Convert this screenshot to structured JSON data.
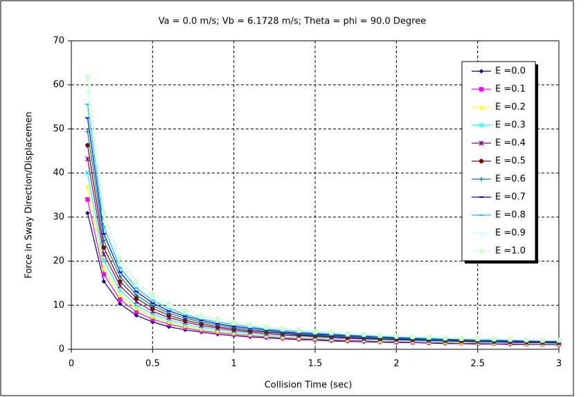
{
  "chart_data": {
    "type": "line",
    "title": "Va = 0.0 m/s; Vb = 6.1728 m/s; Theta = phi = 90.0 Degree",
    "x_label": "Collision Time (sec)",
    "y_label": "Force in Sway Direction/Displacemen",
    "x": [
      0.1,
      0.2,
      0.3,
      0.4,
      0.5,
      0.6,
      0.7,
      0.8,
      0.9,
      1.0,
      1.1,
      1.2,
      1.3,
      1.4,
      1.5,
      1.6,
      1.7,
      1.8,
      1.9,
      2.0,
      2.1,
      2.2,
      2.3,
      2.4,
      2.5,
      2.6,
      2.7,
      2.8,
      2.9,
      3.0
    ],
    "xlim": [
      0,
      3
    ],
    "xticks": [
      0,
      0.5,
      1,
      1.5,
      2,
      2.5,
      3
    ],
    "ylim": [
      0,
      70
    ],
    "yticks": [
      0,
      10,
      20,
      30,
      40,
      50,
      60,
      70
    ],
    "grid": true,
    "legend": "right",
    "series": [
      {
        "name": "E =0.0",
        "color": "#000080",
        "marker": "diamond",
        "values": [
          30.9,
          15.4,
          10.3,
          7.7,
          6.2,
          5.1,
          4.4,
          3.9,
          3.4,
          3.1,
          2.8,
          2.6,
          2.4,
          2.2,
          2.1,
          1.9,
          1.8,
          1.7,
          1.6,
          1.5,
          1.5,
          1.4,
          1.3,
          1.3,
          1.2,
          1.2,
          1.1,
          1.1,
          1.1,
          1.0
        ]
      },
      {
        "name": "E =0.1",
        "color": "#ff00ff",
        "marker": "square",
        "values": [
          34.0,
          17.0,
          11.3,
          8.5,
          6.8,
          5.7,
          4.9,
          4.2,
          3.8,
          3.4,
          3.1,
          2.8,
          2.6,
          2.4,
          2.3,
          2.1,
          2.0,
          1.9,
          1.8,
          1.7,
          1.6,
          1.5,
          1.5,
          1.4,
          1.4,
          1.3,
          1.3,
          1.2,
          1.2,
          1.1
        ]
      },
      {
        "name": "E =0.2",
        "color": "#ffff00",
        "marker": "triangle",
        "values": [
          37.0,
          18.5,
          12.3,
          9.3,
          7.4,
          6.2,
          5.3,
          4.6,
          4.1,
          3.7,
          3.4,
          3.1,
          2.8,
          2.6,
          2.5,
          2.3,
          2.2,
          2.1,
          1.9,
          1.9,
          1.8,
          1.7,
          1.6,
          1.5,
          1.5,
          1.4,
          1.4,
          1.3,
          1.3,
          1.2
        ]
      },
      {
        "name": "E =0.3",
        "color": "#00ffff",
        "marker": "x",
        "values": [
          40.1,
          20.1,
          13.4,
          10.0,
          8.0,
          6.7,
          5.7,
          5.0,
          4.5,
          4.0,
          3.6,
          3.3,
          3.1,
          2.9,
          2.7,
          2.5,
          2.4,
          2.2,
          2.1,
          2.0,
          1.9,
          1.8,
          1.7,
          1.7,
          1.6,
          1.5,
          1.5,
          1.4,
          1.4,
          1.3
        ]
      },
      {
        "name": "E =0.4",
        "color": "#800080",
        "marker": "star",
        "values": [
          43.2,
          21.6,
          14.4,
          10.8,
          8.6,
          7.2,
          6.2,
          5.4,
          4.8,
          4.3,
          3.9,
          3.6,
          3.3,
          3.1,
          2.9,
          2.7,
          2.5,
          2.4,
          2.3,
          2.2,
          2.1,
          2.0,
          1.9,
          1.8,
          1.7,
          1.7,
          1.6,
          1.5,
          1.5,
          1.4
        ]
      },
      {
        "name": "E =0.5",
        "color": "#800000",
        "marker": "circle",
        "values": [
          46.3,
          23.1,
          15.4,
          11.6,
          9.3,
          7.7,
          6.6,
          5.8,
          5.1,
          4.6,
          4.2,
          3.9,
          3.6,
          3.3,
          3.1,
          2.9,
          2.7,
          2.6,
          2.4,
          2.3,
          2.2,
          2.1,
          2.0,
          1.9,
          1.9,
          1.8,
          1.7,
          1.7,
          1.6,
          1.5
        ]
      },
      {
        "name": "E =0.6",
        "color": "#008080",
        "marker": "plus",
        "values": [
          49.4,
          24.7,
          16.5,
          12.3,
          9.9,
          8.2,
          7.1,
          6.2,
          5.5,
          4.9,
          4.5,
          4.1,
          3.8,
          3.5,
          3.3,
          3.1,
          2.9,
          2.7,
          2.6,
          2.5,
          2.4,
          2.2,
          2.1,
          2.1,
          2.0,
          1.9,
          1.8,
          1.8,
          1.7,
          1.6
        ]
      },
      {
        "name": "E =0.7",
        "color": "#0000ff",
        "marker": "dash",
        "values": [
          52.5,
          26.2,
          17.5,
          13.1,
          10.5,
          8.7,
          7.5,
          6.6,
          5.8,
          5.2,
          4.8,
          4.4,
          4.0,
          3.7,
          3.5,
          3.3,
          3.1,
          2.9,
          2.8,
          2.6,
          2.5,
          2.4,
          2.3,
          2.2,
          2.1,
          2.0,
          1.9,
          1.9,
          1.8,
          1.7
        ]
      },
      {
        "name": "E =0.8",
        "color": "#00ccff",
        "marker": "dash",
        "values": [
          55.6,
          27.8,
          18.5,
          13.9,
          11.1,
          9.3,
          7.9,
          6.9,
          6.2,
          5.6,
          5.1,
          4.6,
          4.3,
          4.0,
          3.7,
          3.5,
          3.3,
          3.1,
          2.9,
          2.8,
          2.6,
          2.5,
          2.4,
          2.3,
          2.2,
          2.1,
          2.1,
          2.0,
          1.9,
          1.9
        ]
      },
      {
        "name": "E =0.9",
        "color": "#ccffff",
        "marker": "triangle",
        "values": [
          58.6,
          29.3,
          19.5,
          14.7,
          11.7,
          9.8,
          8.4,
          7.3,
          6.5,
          5.9,
          5.3,
          4.9,
          4.5,
          4.2,
          3.9,
          3.7,
          3.4,
          3.3,
          3.1,
          2.9,
          2.8,
          2.7,
          2.5,
          2.4,
          2.3,
          2.3,
          2.2,
          2.1,
          2.0,
          2.0
        ]
      },
      {
        "name": "E =1.0",
        "color": "#ccffcc",
        "marker": "square",
        "values": [
          61.7,
          30.9,
          20.6,
          15.4,
          12.3,
          10.3,
          8.8,
          7.7,
          6.9,
          6.2,
          5.6,
          5.1,
          4.7,
          4.4,
          4.1,
          3.9,
          3.6,
          3.4,
          3.2,
          3.1,
          2.9,
          2.8,
          2.7,
          2.6,
          2.5,
          2.4,
          2.3,
          2.2,
          2.1,
          2.1
        ]
      }
    ]
  }
}
